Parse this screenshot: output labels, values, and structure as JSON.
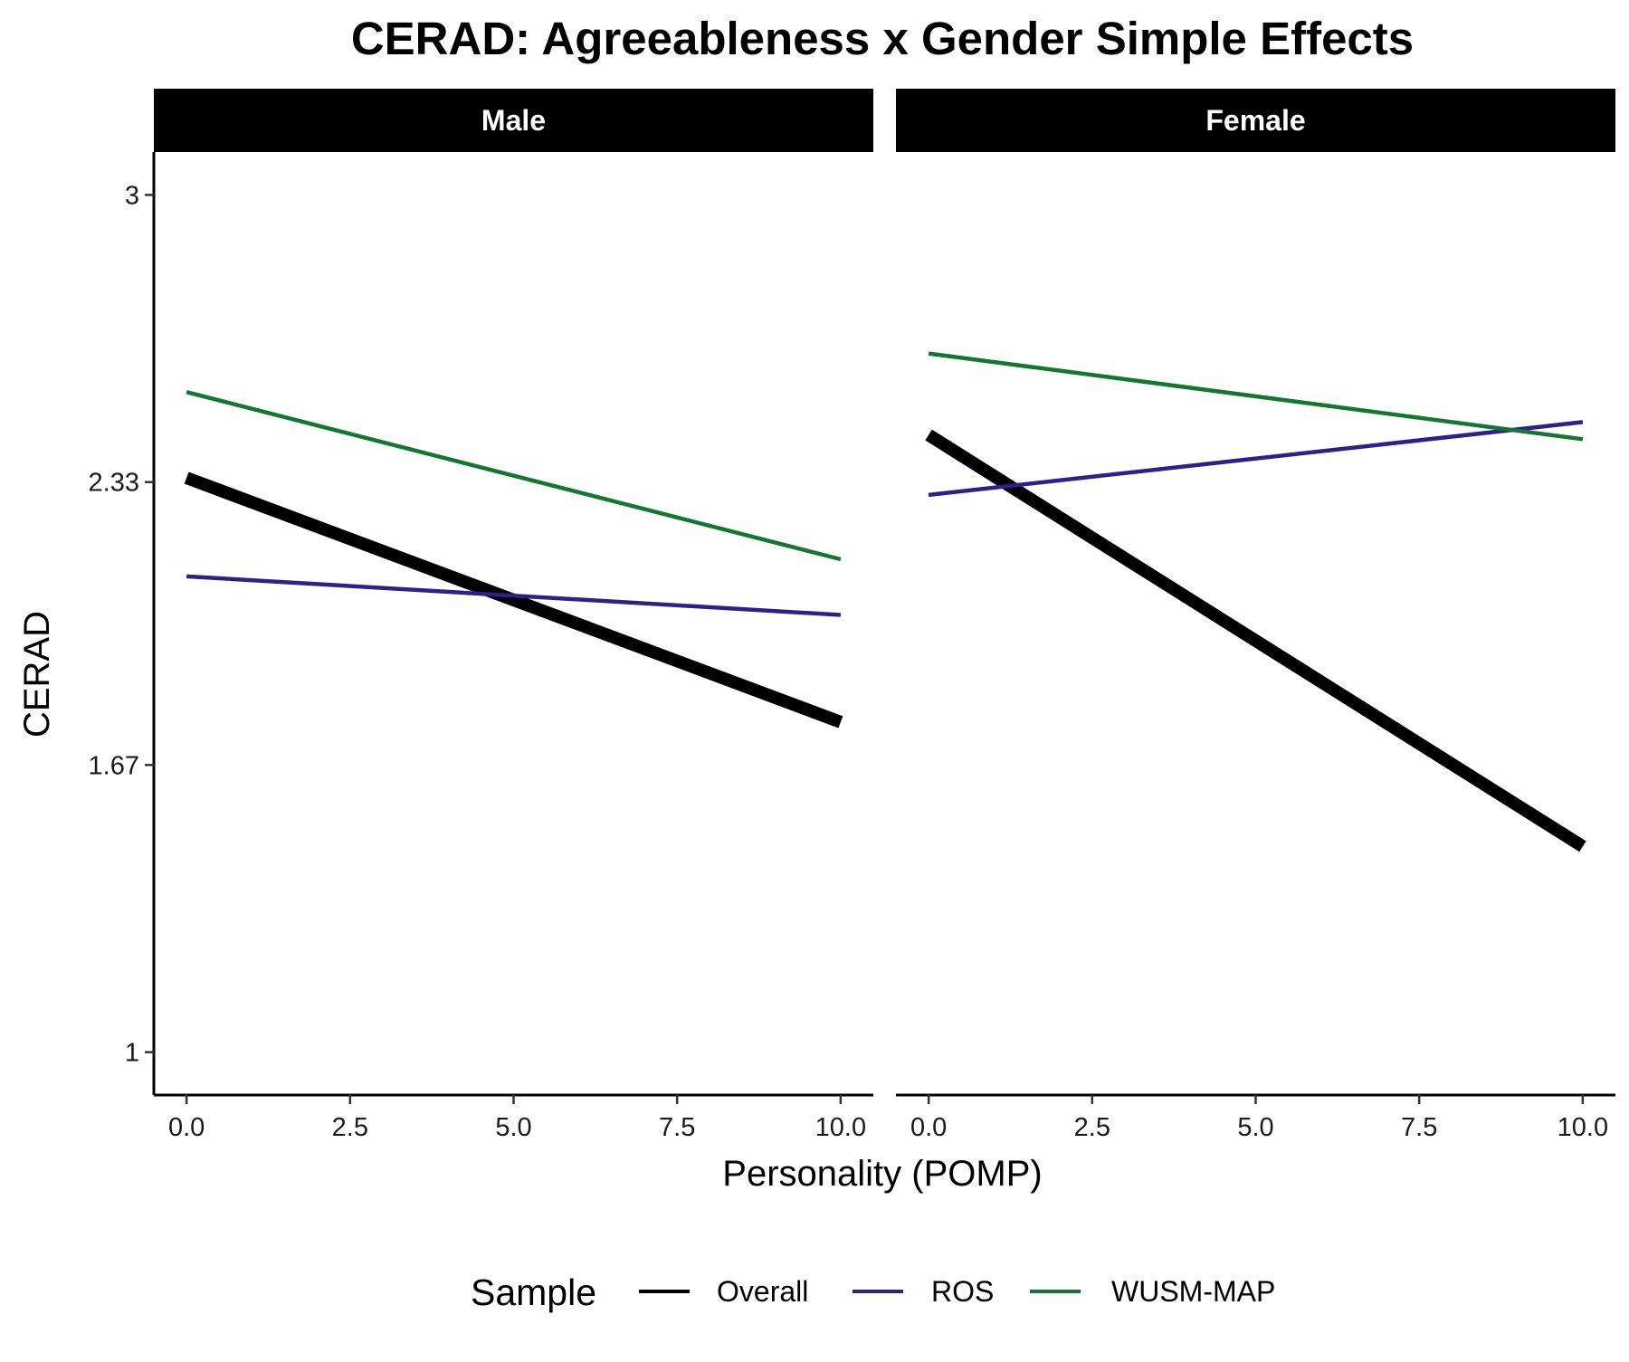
{
  "chart_data": {
    "type": "line",
    "title": "CERAD: Agreeableness x Gender Simple Effects",
    "xlabel": "Personality (POMP)",
    "ylabel": "CERAD",
    "x_ticks": [
      "0.0",
      "2.5",
      "5.0",
      "7.5",
      "10.0"
    ],
    "y_ticks": [
      "1",
      "1.67",
      "2.33",
      "3"
    ],
    "xlim": [
      -0.5,
      10.5
    ],
    "ylim": [
      0.9,
      3.1
    ],
    "grid": false,
    "legend": {
      "title": "Sample",
      "placement": "bottom",
      "entries": [
        "Overall",
        "ROS",
        "WUSM-MAP"
      ]
    },
    "colors": {
      "Overall": "#000000",
      "ROS": "#2e1f8a",
      "WUSM-MAP": "#137731",
      "strip_background": "#000000",
      "strip_text": "#ffffff"
    },
    "panels": [
      {
        "label": "Male",
        "series": [
          {
            "name": "Overall",
            "x": [
              0,
              10
            ],
            "y": [
              2.34,
              1.77
            ]
          },
          {
            "name": "ROS",
            "x": [
              0,
              10
            ],
            "y": [
              2.11,
              2.02
            ]
          },
          {
            "name": "WUSM-MAP",
            "x": [
              0,
              10
            ],
            "y": [
              2.54,
              2.15
            ]
          }
        ]
      },
      {
        "label": "Female",
        "series": [
          {
            "name": "Overall",
            "x": [
              0,
              10
            ],
            "y": [
              2.44,
              1.48
            ]
          },
          {
            "name": "ROS",
            "x": [
              0,
              10
            ],
            "y": [
              2.3,
              2.47
            ]
          },
          {
            "name": "WUSM-MAP",
            "x": [
              0,
              10
            ],
            "y": [
              2.63,
              2.43
            ]
          }
        ]
      }
    ]
  }
}
